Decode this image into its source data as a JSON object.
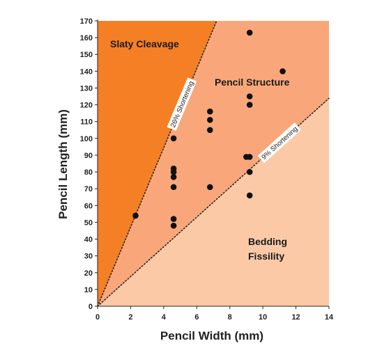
{
  "chart_data": {
    "type": "scatter",
    "title": "",
    "xlabel": "Pencil Width (mm)",
    "ylabel": "Pencil Length (mm)",
    "xlim": [
      0,
      14
    ],
    "ylim": [
      0,
      170
    ],
    "xticks": [
      0,
      2,
      4,
      6,
      8,
      10,
      12,
      14
    ],
    "yticks": [
      0,
      10,
      20,
      30,
      40,
      50,
      60,
      70,
      80,
      90,
      100,
      110,
      120,
      130,
      140,
      150,
      160,
      170
    ],
    "grid": false,
    "regions": [
      {
        "name": "Slaty Cleavage",
        "color": "#f57f25"
      },
      {
        "name": "Pencil Structure",
        "color": "#f9a77a"
      },
      {
        "name": "Bedding Fissility",
        "color": "#fbc9a6"
      }
    ],
    "region_labels": {
      "slaty": "Slaty Cleavage",
      "pencil": "Pencil Structure",
      "bedding_1": "Bedding",
      "bedding_2": "Fissility"
    },
    "boundaries": [
      {
        "label": "26% Shortening",
        "slope": 23.6
      },
      {
        "label": "9% Shortening",
        "slope": 8.85
      }
    ],
    "points": [
      {
        "x": 2.3,
        "y": 54
      },
      {
        "x": 4.6,
        "y": 100
      },
      {
        "x": 4.6,
        "y": 82
      },
      {
        "x": 4.6,
        "y": 80
      },
      {
        "x": 4.6,
        "y": 77
      },
      {
        "x": 4.6,
        "y": 71
      },
      {
        "x": 4.6,
        "y": 52
      },
      {
        "x": 4.6,
        "y": 48
      },
      {
        "x": 6.8,
        "y": 116
      },
      {
        "x": 6.8,
        "y": 111
      },
      {
        "x": 6.8,
        "y": 105
      },
      {
        "x": 6.8,
        "y": 71
      },
      {
        "x": 9.0,
        "y": 89
      },
      {
        "x": 9.2,
        "y": 163
      },
      {
        "x": 9.2,
        "y": 125
      },
      {
        "x": 9.2,
        "y": 120
      },
      {
        "x": 9.2,
        "y": 89
      },
      {
        "x": 9.2,
        "y": 80
      },
      {
        "x": 9.2,
        "y": 66
      },
      {
        "x": 11.2,
        "y": 140
      }
    ]
  }
}
